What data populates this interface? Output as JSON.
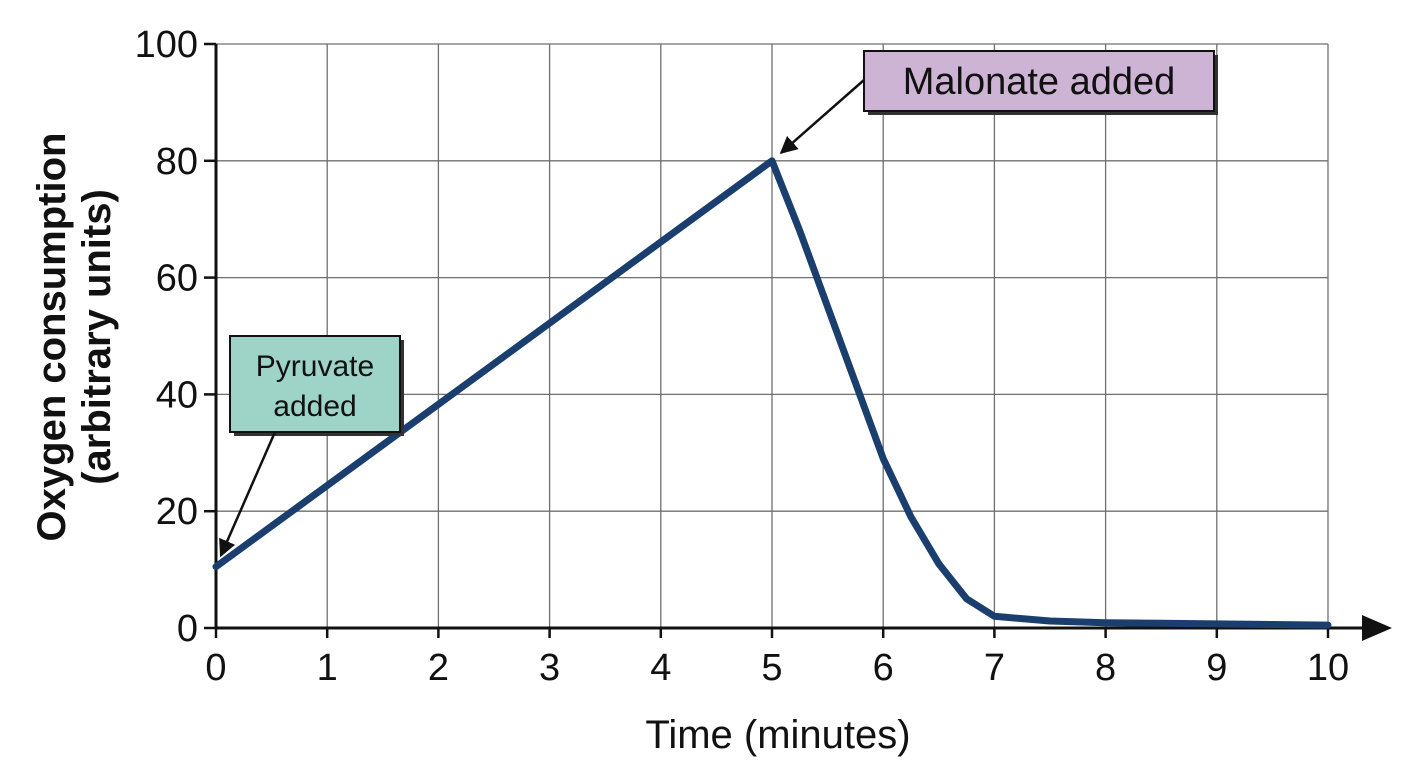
{
  "chart_data": {
    "type": "line",
    "xlabel": "Time (minutes)",
    "ylabel_line1": "Oxygen consumption",
    "ylabel_line2": "(arbitrary units)",
    "xlim": [
      0,
      10
    ],
    "ylim": [
      0,
      100
    ],
    "x_ticks": [
      "0",
      "1",
      "2",
      "3",
      "4",
      "5",
      "6",
      "7",
      "8",
      "9",
      "10"
    ],
    "y_ticks": [
      "0",
      "20",
      "40",
      "60",
      "80",
      "100"
    ],
    "grid": true,
    "line_color": "#1a3f6e",
    "series": [
      {
        "x": [
          0,
          5,
          5.25,
          5.5,
          5.75,
          6,
          6.25,
          6.5,
          6.75,
          7,
          7.5,
          8,
          8.5,
          9,
          9.5,
          10
        ],
        "y": [
          10.5,
          80,
          68,
          55,
          42,
          29,
          19,
          11,
          5,
          2,
          1.2,
          0.9,
          0.8,
          0.7,
          0.6,
          0.5
        ]
      }
    ],
    "annotations": [
      {
        "lines": [
          "Pyruvate",
          "added"
        ],
        "x": 0,
        "y": 10.5,
        "color": "#9ed4c8"
      },
      {
        "lines": [
          "Malonate added"
        ],
        "x": 5,
        "y": 80,
        "color": "#cdb3d4"
      }
    ]
  }
}
